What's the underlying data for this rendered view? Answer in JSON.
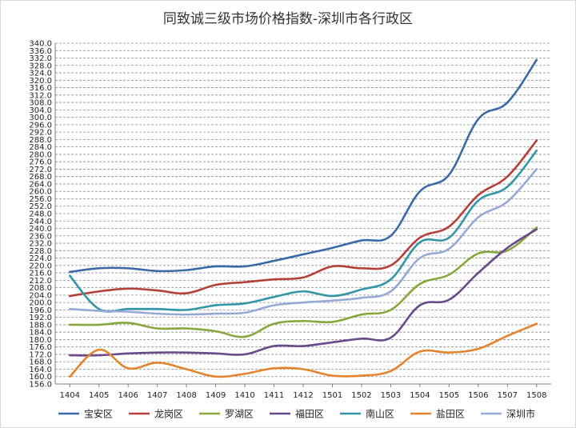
{
  "chart_data": {
    "type": "line",
    "title": "同致诚三级市场价格指数-深圳市各行政区",
    "xlabel": "",
    "ylabel": "",
    "categories": [
      "1404",
      "1405",
      "1406",
      "1407",
      "1408",
      "1409",
      "1410",
      "1411",
      "1412",
      "1501",
      "1502",
      "1503",
      "1504",
      "1505",
      "1506",
      "1507",
      "1508"
    ],
    "ylim": [
      156,
      340
    ],
    "ystep": 4,
    "grid": true,
    "legend": "bottom",
    "series": [
      {
        "name": "宝安区",
        "color": "#3b6aa8",
        "values": [
          216.5,
          218.5,
          218.5,
          217.0,
          217.5,
          219.5,
          219.5,
          222.5,
          226.0,
          229.5,
          233.5,
          236.0,
          260.0,
          269.0,
          299.0,
          308.0,
          331.0
        ]
      },
      {
        "name": "龙岗区",
        "color": "#b5403a",
        "values": [
          203.5,
          206.0,
          207.5,
          206.5,
          205.0,
          209.5,
          211.0,
          212.5,
          213.5,
          219.5,
          218.5,
          220.0,
          235.0,
          241.0,
          258.0,
          268.0,
          287.5
        ]
      },
      {
        "name": "罗湖区",
        "color": "#86a83c",
        "values": [
          188.0,
          188.0,
          189.0,
          186.0,
          186.0,
          184.5,
          181.5,
          188.5,
          190.0,
          189.5,
          193.5,
          196.0,
          210.0,
          215.0,
          226.5,
          228.0,
          240.5
        ]
      },
      {
        "name": "福田区",
        "color": "#6a4a8a",
        "values": [
          171.5,
          171.5,
          172.5,
          173.0,
          173.0,
          172.5,
          172.0,
          176.5,
          176.5,
          178.5,
          180.5,
          181.0,
          198.5,
          201.5,
          216.0,
          229.5,
          239.5
        ]
      },
      {
        "name": "南山区",
        "color": "#3396a8",
        "values": [
          214.5,
          196.5,
          196.5,
          196.5,
          196.0,
          198.5,
          199.5,
          203.0,
          206.0,
          203.5,
          207.0,
          212.5,
          232.5,
          235.0,
          255.0,
          262.5,
          282.0
        ]
      },
      {
        "name": "盐田区",
        "color": "#e5842e",
        "values": [
          160.0,
          174.5,
          164.5,
          167.5,
          164.0,
          160.0,
          161.5,
          164.5,
          164.0,
          160.5,
          160.5,
          163.0,
          173.5,
          173.0,
          175.0,
          182.0,
          188.5
        ]
      },
      {
        "name": "深圳市",
        "color": "#95a9d6",
        "values": [
          196.5,
          195.5,
          195.0,
          194.0,
          193.5,
          194.0,
          194.5,
          198.5,
          200.0,
          201.0,
          202.5,
          206.0,
          224.0,
          229.0,
          246.0,
          254.5,
          272.0
        ]
      }
    ]
  }
}
